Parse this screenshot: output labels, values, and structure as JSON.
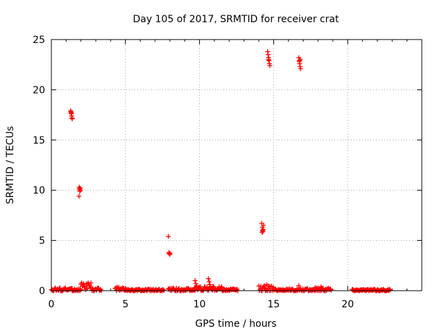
{
  "chart_data": {
    "type": "scatter",
    "title": "Day 105 of 2017, SRMTID for receiver crat",
    "xlabel": "GPS time / hours",
    "ylabel": "SRMTID / TECUs",
    "xlim": [
      0,
      25
    ],
    "ylim": [
      0,
      25
    ],
    "x_ticks": [
      0,
      5,
      10,
      15,
      20
    ],
    "y_ticks": [
      0,
      5,
      10,
      15,
      20,
      25
    ],
    "x_tick_labels": [
      "0",
      "5",
      "10",
      "15",
      "20"
    ],
    "y_tick_labels": [
      "0",
      "5",
      "10",
      "15",
      "20",
      "25"
    ],
    "grid": true,
    "marker": "+",
    "series": [
      {
        "name": "SRMTID",
        "color": "#ff0000",
        "points": [
          [
            1.3,
            17.9
          ],
          [
            1.33,
            17.8
          ],
          [
            1.35,
            17.6
          ],
          [
            1.37,
            17.4
          ],
          [
            1.39,
            17.2
          ],
          [
            1.41,
            17.1
          ],
          [
            1.34,
            17.7
          ],
          [
            1.88,
            10.3
          ],
          [
            1.9,
            10.1
          ],
          [
            1.92,
            9.9
          ],
          [
            1.94,
            10.2
          ],
          [
            1.87,
            9.4
          ],
          [
            1.96,
            10.0
          ],
          [
            7.9,
            5.4
          ],
          [
            7.93,
            3.8
          ],
          [
            7.96,
            3.7
          ],
          [
            7.99,
            3.6
          ],
          [
            8.01,
            3.7
          ],
          [
            14.2,
            6.7
          ],
          [
            14.23,
            6.3
          ],
          [
            14.25,
            6.0
          ],
          [
            14.27,
            5.9
          ],
          [
            14.3,
            6.1
          ],
          [
            14.22,
            5.8
          ],
          [
            14.32,
            6.5
          ],
          [
            14.6,
            23.8
          ],
          [
            14.63,
            23.5
          ],
          [
            14.66,
            23.2
          ],
          [
            14.69,
            22.9
          ],
          [
            14.72,
            22.6
          ],
          [
            14.75,
            22.4
          ],
          [
            14.65,
            23.0
          ],
          [
            16.7,
            23.2
          ],
          [
            16.73,
            22.9
          ],
          [
            16.76,
            22.6
          ],
          [
            16.79,
            22.3
          ],
          [
            16.82,
            22.1
          ],
          [
            16.74,
            22.8
          ],
          [
            16.8,
            23.0
          ],
          [
            9.7,
            1.0
          ],
          [
            9.75,
            0.7
          ],
          [
            9.8,
            0.5
          ],
          [
            10.6,
            1.2
          ],
          [
            10.65,
            0.9
          ],
          [
            10.7,
            0.6
          ],
          [
            14.55,
            0.6
          ],
          [
            14.4,
            0.5
          ],
          [
            16.7,
            0.5
          ],
          [
            18.2,
            0.4
          ]
        ]
      }
    ],
    "baseline_segments": [
      {
        "x_start": 0.0,
        "x_end": 1.4,
        "base": 0.12,
        "amp": 0.18
      },
      {
        "x_start": 1.4,
        "x_end": 2.0,
        "base": 0.08,
        "amp": 0.12
      },
      {
        "x_start": 2.0,
        "x_end": 2.7,
        "base": 0.45,
        "amp": 0.35
      },
      {
        "x_start": 2.7,
        "x_end": 3.4,
        "base": 0.12,
        "amp": 0.18
      },
      {
        "x_start": 4.3,
        "x_end": 4.9,
        "base": 0.2,
        "amp": 0.2
      },
      {
        "x_start": 4.9,
        "x_end": 7.6,
        "base": 0.05,
        "amp": 0.1
      },
      {
        "x_start": 7.9,
        "x_end": 9.7,
        "base": 0.1,
        "amp": 0.15
      },
      {
        "x_start": 9.7,
        "x_end": 11.5,
        "base": 0.2,
        "amp": 0.25
      },
      {
        "x_start": 11.5,
        "x_end": 12.6,
        "base": 0.08,
        "amp": 0.12
      },
      {
        "x_start": 14.0,
        "x_end": 15.0,
        "base": 0.2,
        "amp": 0.3
      },
      {
        "x_start": 15.0,
        "x_end": 17.8,
        "base": 0.08,
        "amp": 0.12
      },
      {
        "x_start": 17.8,
        "x_end": 18.9,
        "base": 0.15,
        "amp": 0.2
      },
      {
        "x_start": 20.3,
        "x_end": 22.9,
        "base": 0.05,
        "amp": 0.1
      }
    ]
  }
}
